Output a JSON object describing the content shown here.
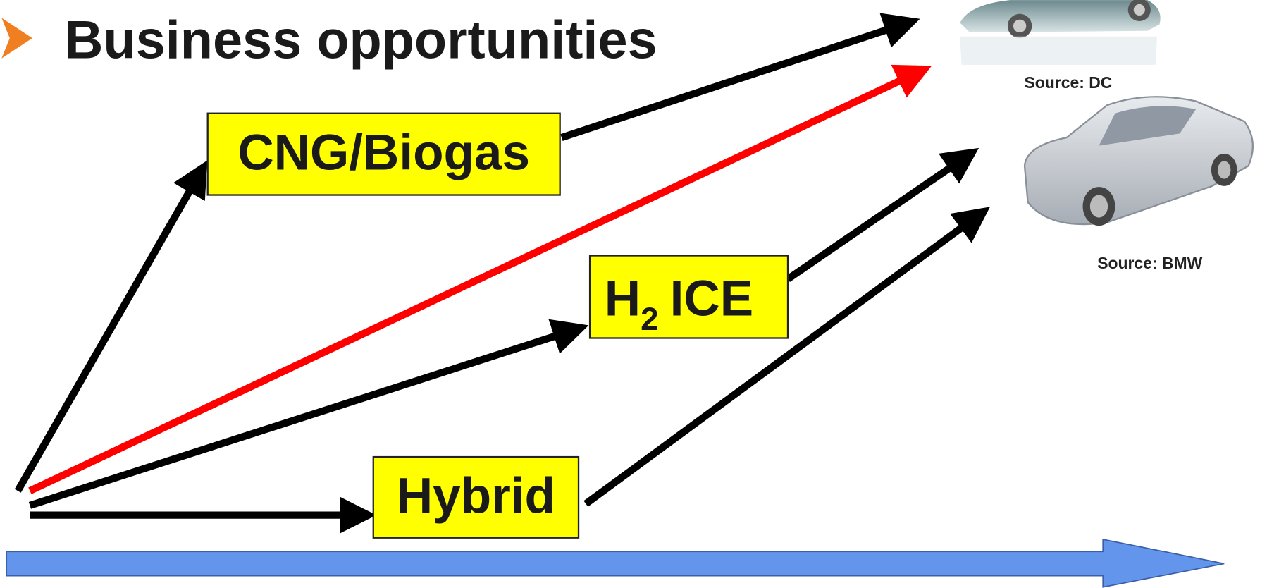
{
  "header": {
    "title": "Business opportunities"
  },
  "nodes": [
    {
      "label": "CNG/Biogas"
    },
    {
      "label": "H",
      "subscript": "2",
      "label_rest": "ICE"
    },
    {
      "label": "Hybrid"
    }
  ],
  "images": [
    {
      "caption": "Source: DC"
    },
    {
      "caption": "Source: BMW"
    }
  ]
}
